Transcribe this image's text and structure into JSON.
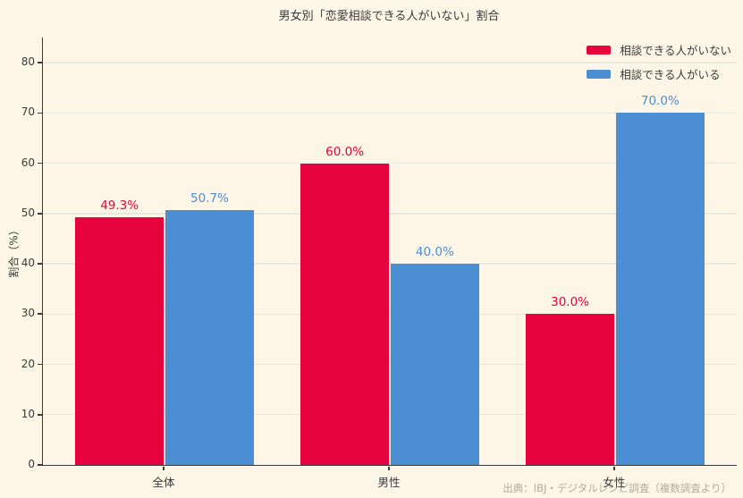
{
  "title": "男女別「恋愛相談できる人がいない」割合",
  "source_note": "出典：IBJ・デジタルレシピ調査（複数調査より）",
  "legend": {
    "items": [
      {
        "label": "相談できる人がいない",
        "color": "#e6023e"
      },
      {
        "label": "相談できる人がいる",
        "color": "#4b8ed3"
      }
    ]
  },
  "chart_data": {
    "type": "bar",
    "title": "男女別「恋愛相談できる人がいない」割合",
    "categories": [
      "全体",
      "男性",
      "女性"
    ],
    "series": [
      {
        "name": "相談できる人がいない",
        "color": "#e6023e",
        "values": [
          49.3,
          60.0,
          30.0
        ],
        "data_labels": [
          "49.3%",
          "60.0%",
          "30.0%"
        ]
      },
      {
        "name": "相談できる人がいる",
        "color": "#4b8ed3",
        "values": [
          50.7,
          40.0,
          70.0
        ],
        "data_labels": [
          "50.7%",
          "40.0%",
          "70.0%"
        ]
      }
    ],
    "xlabel": "",
    "ylabel": "割合（%）",
    "ylim": [
      0,
      85
    ],
    "yticks": [
      0,
      10,
      20,
      30,
      40,
      50,
      60,
      70,
      80
    ],
    "grid": true,
    "legend_position": "upper right",
    "annotation": "出典：IBJ・デジタルレシピ調査（複数調査より）"
  },
  "colors": {
    "background": "#fdf6e7",
    "grid": "#e8eae0",
    "axis": "#3a3a3a",
    "text": "#3a3a3a",
    "muted_text": "#b3ab9c"
  }
}
